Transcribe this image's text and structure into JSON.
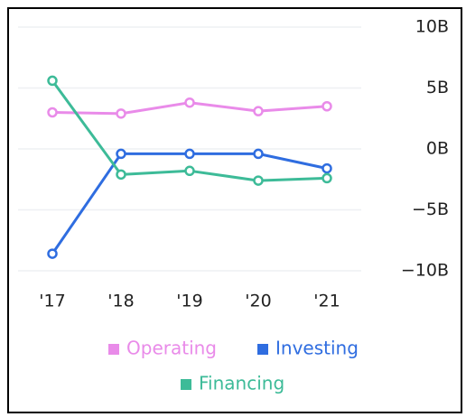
{
  "chart_data": {
    "type": "line",
    "categories": [
      "'17",
      "'18",
      "'19",
      "'20",
      "'21"
    ],
    "series": [
      {
        "name": "Operating",
        "color": "#e98be9",
        "values": [
          3.0,
          2.9,
          3.8,
          3.1,
          3.5
        ]
      },
      {
        "name": "Investing",
        "color": "#2f6de0",
        "values": [
          -8.6,
          -0.4,
          -0.4,
          -0.4,
          -1.6
        ]
      },
      {
        "name": "Financing",
        "color": "#3dbb98",
        "values": [
          5.6,
          -2.1,
          -1.8,
          -2.6,
          -2.4
        ]
      }
    ],
    "ylim": [
      -10,
      10
    ],
    "yticks": [
      {
        "value": 10,
        "label": "10B"
      },
      {
        "value": 5,
        "label": "5B"
      },
      {
        "value": 0,
        "label": "0B"
      },
      {
        "value": -5,
        "label": "−5B"
      },
      {
        "value": -10,
        "label": "−10B"
      }
    ],
    "grid": true,
    "legend": "bottom"
  }
}
